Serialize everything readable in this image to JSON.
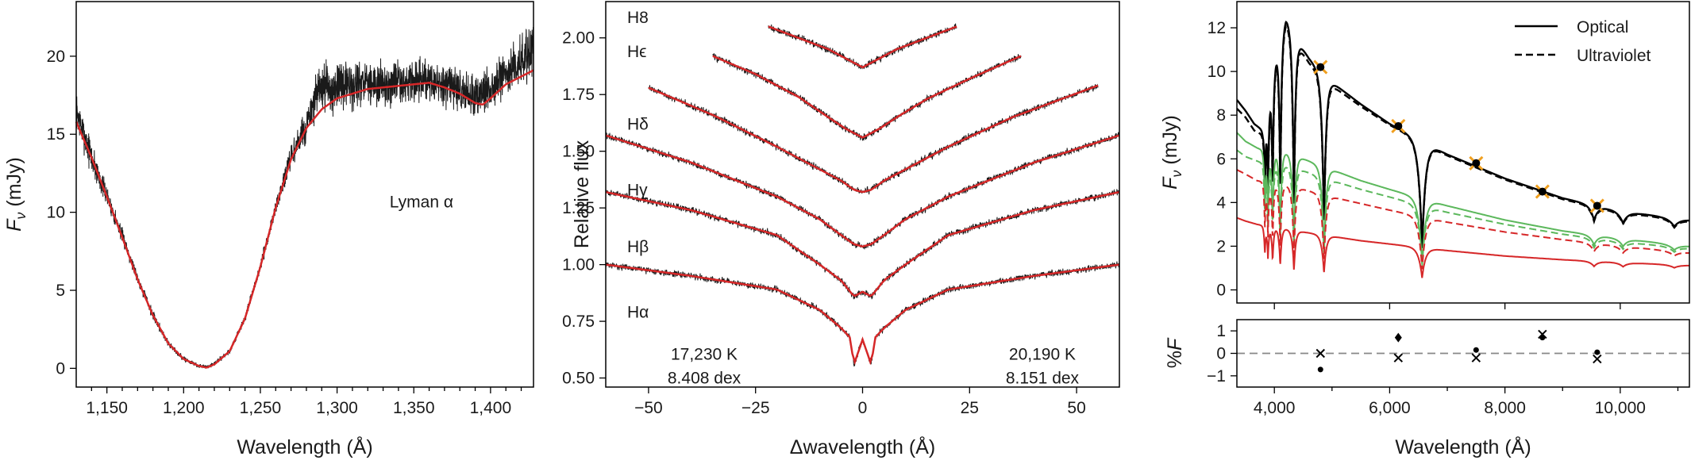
{
  "chart_data": [
    {
      "panel": "left",
      "type": "line",
      "xlabel": "Wavelength (Å)",
      "ylabel": "F_ν (mJy)",
      "xlim": [
        1130,
        1428
      ],
      "ylim": [
        -1.2,
        23.5
      ],
      "xticks": [
        1150,
        1200,
        1250,
        1300,
        1350,
        1400
      ],
      "xtick_labels": [
        "1,150",
        "1,200",
        "1,250",
        "1,300",
        "1,350",
        "1,400"
      ],
      "yticks": [
        0,
        5,
        10,
        15,
        20
      ],
      "ytick_labels": [
        "0",
        "5",
        "10",
        "15",
        "20"
      ],
      "annotations": [
        {
          "text": "Lyman α",
          "x": 1355,
          "y": 10.3
        }
      ],
      "series": [
        {
          "role": "observed",
          "color": "#1a1a1a",
          "x": [
            1130,
            1140,
            1150,
            1160,
            1170,
            1180,
            1190,
            1200,
            1210,
            1215,
            1220,
            1230,
            1240,
            1250,
            1260,
            1270,
            1280,
            1288,
            1300,
            1320,
            1340,
            1360,
            1380,
            1390,
            1400,
            1410,
            1428
          ],
          "y": [
            16.5,
            13.5,
            11,
            8.5,
            5.8,
            3.4,
            1.6,
            0.6,
            0.15,
            0.1,
            0.3,
            1.1,
            3.2,
            6.5,
            10.3,
            13.5,
            15.5,
            17.8,
            18,
            18.2,
            18.3,
            18.4,
            17.8,
            17.5,
            18,
            18.8,
            20.5
          ],
          "noise": [
            0.9,
            0.9,
            0.5,
            0.4,
            0.3,
            0.25,
            0.2,
            0.15,
            0.1,
            0.1,
            0.1,
            0.15,
            0.2,
            0.3,
            0.5,
            0.7,
            0.8,
            1.4,
            1.3,
            1.1,
            1.1,
            1.1,
            1.1,
            1.1,
            1.1,
            1.2,
            1.5
          ]
        },
        {
          "role": "model",
          "color": "#d62728",
          "x": [
            1130,
            1140,
            1150,
            1160,
            1170,
            1180,
            1190,
            1200,
            1210,
            1215,
            1220,
            1230,
            1240,
            1250,
            1260,
            1270,
            1280,
            1290,
            1300,
            1320,
            1340,
            1360,
            1370,
            1380,
            1390,
            1395,
            1400,
            1410,
            1428
          ],
          "y": [
            15.8,
            13.5,
            11,
            8.4,
            5.7,
            3.4,
            1.6,
            0.6,
            0.15,
            0.05,
            0.25,
            1.1,
            3.2,
            6.5,
            10.3,
            13.4,
            15.4,
            16.6,
            17.3,
            17.9,
            18.1,
            18.3,
            18,
            17.6,
            17.0,
            16.9,
            17.3,
            18.2,
            19.1
          ]
        }
      ]
    },
    {
      "panel": "middle",
      "type": "line",
      "xlabel": "Δwavelength (Å)",
      "ylabel": "Relative flux",
      "xlim": [
        -60,
        60
      ],
      "ylim": [
        0.46,
        2.16
      ],
      "xticks": [
        -50,
        -25,
        0,
        25,
        50
      ],
      "xtick_labels": [
        "−50",
        "−25",
        "0",
        "25",
        "50"
      ],
      "yticks": [
        0.5,
        0.75,
        1.0,
        1.25,
        1.5,
        1.75,
        2.0
      ],
      "ytick_labels": [
        "0.50",
        "0.75",
        "1.00",
        "1.25",
        "1.50",
        "1.75",
        "2.00"
      ],
      "annotations": [
        {
          "text": "17,230 K",
          "x": -37,
          "y": 0.605
        },
        {
          "text": "8.408 dex",
          "x": -37,
          "y": 0.5
        },
        {
          "text": "20,190 K",
          "x": 42,
          "y": 0.605
        },
        {
          "text": "8.151 dex",
          "x": 42,
          "y": 0.5
        }
      ],
      "lines": [
        {
          "name": "Hα",
          "label_x": -55,
          "label_y": 0.79,
          "xmin": -60,
          "xmax": 60,
          "x": [
            -60,
            -40,
            -20,
            -10,
            -5,
            -3,
            -2,
            0,
            2,
            3,
            5,
            10,
            20,
            40,
            60
          ],
          "y": [
            1.0,
            0.95,
            0.89,
            0.8,
            0.72,
            0.68,
            0.56,
            0.67,
            0.56,
            0.68,
            0.72,
            0.8,
            0.89,
            0.95,
            1.0
          ]
        },
        {
          "name": "Hβ",
          "label_x": -55,
          "label_y": 1.08,
          "xmin": -60,
          "xmax": 60,
          "x": [
            -60,
            -40,
            -20,
            -10,
            -5,
            -2,
            0,
            2,
            5,
            10,
            20,
            40,
            60
          ],
          "y": [
            1.32,
            1.24,
            1.13,
            1.0,
            0.93,
            0.86,
            0.88,
            0.86,
            0.93,
            1.0,
            1.13,
            1.24,
            1.32
          ]
        },
        {
          "name": "Hγ",
          "label_x": -55,
          "label_y": 1.33,
          "xmin": -60,
          "xmax": 60,
          "x": [
            -60,
            -40,
            -20,
            -10,
            -5,
            -2,
            0,
            2,
            5,
            10,
            20,
            40,
            60
          ],
          "y": [
            1.57,
            1.45,
            1.3,
            1.2,
            1.13,
            1.09,
            1.08,
            1.09,
            1.13,
            1.2,
            1.3,
            1.45,
            1.57
          ]
        },
        {
          "name": "Hδ",
          "label_x": -55,
          "label_y": 1.62,
          "xmin": -50,
          "xmax": 55,
          "x": [
            -50,
            -35,
            -20,
            -10,
            -5,
            -2,
            0,
            2,
            5,
            10,
            20,
            35,
            55
          ],
          "y": [
            1.78,
            1.66,
            1.52,
            1.42,
            1.37,
            1.33,
            1.32,
            1.33,
            1.37,
            1.42,
            1.52,
            1.65,
            1.79
          ]
        },
        {
          "name": "Hϵ",
          "label_x": -55,
          "label_y": 1.94,
          "xmin": -35,
          "xmax": 37,
          "x": [
            -35,
            -25,
            -15,
            -8,
            -4,
            -1,
            0,
            1,
            4,
            8,
            15,
            25,
            37
          ],
          "y": [
            1.92,
            1.84,
            1.74,
            1.65,
            1.6,
            1.57,
            1.56,
            1.57,
            1.6,
            1.65,
            1.73,
            1.82,
            1.92
          ]
        },
        {
          "name": "H8",
          "label_x": -55,
          "label_y": 2.09,
          "xmin": -22,
          "xmax": 22,
          "x": [
            -22,
            -15,
            -8,
            -4,
            -1,
            0,
            1,
            4,
            8,
            15,
            22
          ],
          "y": [
            2.05,
            2.0,
            1.95,
            1.91,
            1.88,
            1.87,
            1.88,
            1.91,
            1.95,
            2.0,
            2.05
          ]
        }
      ]
    },
    {
      "panel": "right-top",
      "type": "line",
      "ylabel": "F_ν (mJy)",
      "xlim": [
        3350,
        11200
      ],
      "ylim": [
        -0.6,
        13.2
      ],
      "yticks": [
        0,
        2,
        4,
        6,
        8,
        10,
        12
      ],
      "ytick_labels": [
        "0",
        "2",
        "4",
        "6",
        "8",
        "10",
        "12"
      ],
      "legend": {
        "placement": "top-right",
        "entries": [
          {
            "label": "Optical",
            "dash": "solid",
            "color": "#000000"
          },
          {
            "label": "Ultraviolet",
            "dash": "dashed",
            "color": "#000000"
          }
        ]
      },
      "absorption_lines": [
        {
          "x": 6563,
          "width": 60,
          "depth": 0.72
        },
        {
          "x": 4861,
          "width": 40,
          "depth": 0.7
        },
        {
          "x": 4340,
          "width": 30,
          "depth": 0.68
        },
        {
          "x": 4102,
          "width": 25,
          "depth": 0.62
        },
        {
          "x": 3970,
          "width": 20,
          "depth": 0.55
        },
        {
          "x": 3889,
          "width": 18,
          "depth": 0.5
        },
        {
          "x": 3835,
          "width": 15,
          "depth": 0.45
        },
        {
          "x": 9546,
          "width": 70,
          "depth": 0.18
        },
        {
          "x": 10049,
          "width": 80,
          "depth": 0.15
        },
        {
          "x": 10938,
          "width": 100,
          "depth": 0.12
        }
      ],
      "series": [
        {
          "component": "total",
          "variant": "optical",
          "color": "#000000",
          "dash": "solid",
          "x": [
            3350,
            3500,
            3650,
            3800,
            3900,
            4000,
            4100,
            4200,
            4300,
            4400,
            4600,
            4800,
            5000,
            5500,
            6000,
            6500,
            7000,
            8000,
            9000,
            10000,
            11200
          ],
          "y": [
            8.7,
            8.2,
            7.6,
            7.3,
            8.7,
            10.5,
            11.8,
            12.5,
            12.1,
            11.4,
            10.6,
            10.0,
            9.5,
            8.5,
            7.6,
            6.9,
            6.2,
            5.1,
            4.2,
            3.6,
            3.2
          ]
        },
        {
          "component": "total",
          "variant": "ultraviolet",
          "color": "#000000",
          "dash": "dashed",
          "x": [
            3350,
            3500,
            3650,
            3800,
            3900,
            4000,
            4100,
            4200,
            4300,
            4400,
            4600,
            4800,
            5000,
            5500,
            6000,
            6500,
            7000,
            8000,
            9000,
            10000,
            11200
          ],
          "y": [
            8.3,
            7.9,
            7.3,
            7.1,
            8.5,
            10.3,
            11.6,
            12.3,
            11.9,
            11.2,
            10.4,
            9.85,
            9.35,
            8.4,
            7.55,
            6.85,
            6.15,
            5.05,
            4.15,
            3.55,
            3.15
          ]
        },
        {
          "component": "cooler",
          "variant": "optical",
          "color": "#5cb85c",
          "dash": "solid",
          "x": [
            3350,
            3500,
            3700,
            3900,
            4100,
            4300,
            4500,
            5000,
            5500,
            6000,
            7000,
            8000,
            9000,
            10000,
            11200
          ],
          "y": [
            7.2,
            6.8,
            6.5,
            6.3,
            6.4,
            6.2,
            6.0,
            5.5,
            5.0,
            4.6,
            3.85,
            3.2,
            2.7,
            2.35,
            2.0
          ]
        },
        {
          "component": "cooler",
          "variant": "ultraviolet",
          "color": "#5cb85c",
          "dash": "dashed",
          "x": [
            3350,
            3500,
            3700,
            3900,
            4100,
            4300,
            4500,
            5000,
            5500,
            6000,
            7000,
            8000,
            9000,
            10000,
            11200
          ],
          "y": [
            6.4,
            6.1,
            5.9,
            5.7,
            5.8,
            5.6,
            5.45,
            5.0,
            4.6,
            4.25,
            3.55,
            3.0,
            2.55,
            2.2,
            1.9
          ]
        },
        {
          "component": "hotter",
          "variant": "ultraviolet",
          "color": "#d62728",
          "dash": "dashed",
          "x": [
            3350,
            3500,
            3700,
            3900,
            4100,
            4300,
            4500,
            5000,
            5500,
            6000,
            7000,
            8000,
            9000,
            10000,
            11200
          ],
          "y": [
            5.5,
            5.3,
            5.0,
            4.9,
            4.85,
            4.75,
            4.6,
            4.25,
            3.95,
            3.65,
            3.1,
            2.65,
            2.3,
            2.0,
            1.7
          ]
        },
        {
          "component": "hotter",
          "variant": "optical",
          "color": "#d62728",
          "dash": "solid",
          "x": [
            3350,
            3500,
            3700,
            3900,
            4100,
            4300,
            4500,
            5000,
            5500,
            6000,
            7000,
            8000,
            9000,
            10000,
            11200
          ],
          "y": [
            3.3,
            3.15,
            3.0,
            2.9,
            2.85,
            2.75,
            2.65,
            2.45,
            2.25,
            2.1,
            1.8,
            1.55,
            1.38,
            1.25,
            1.12
          ]
        }
      ],
      "photometry": [
        {
          "x": 4800,
          "y": 10.2
        },
        {
          "x": 6150,
          "y": 7.5
        },
        {
          "x": 7500,
          "y": 5.8
        },
        {
          "x": 8650,
          "y": 4.5
        },
        {
          "x": 9600,
          "y": 3.85
        }
      ]
    },
    {
      "panel": "right-bottom",
      "type": "scatter",
      "xlabel": "Wavelength (Å)",
      "ylabel": "%F",
      "xlim": [
        3350,
        11200
      ],
      "ylim": [
        -1.5,
        1.5
      ],
      "xticks": [
        4000,
        6000,
        8000,
        10000
      ],
      "xtick_labels": [
        "4,000",
        "6,000",
        "8,000",
        "10,000"
      ],
      "yticks": [
        -1,
        0,
        1
      ],
      "ytick_labels": [
        "−1",
        "0",
        "1"
      ],
      "reference_line": 0,
      "points": [
        {
          "x": 4800,
          "y": 0.0,
          "marker": "x"
        },
        {
          "x": 4800,
          "y": -0.72,
          "marker": "dot"
        },
        {
          "x": 6150,
          "y": 0.7,
          "marker": "diamond"
        },
        {
          "x": 6150,
          "y": -0.2,
          "marker": "x"
        },
        {
          "x": 7500,
          "y": 0.15,
          "marker": "dot"
        },
        {
          "x": 7500,
          "y": -0.2,
          "marker": "x"
        },
        {
          "x": 8650,
          "y": 0.85,
          "marker": "x"
        },
        {
          "x": 8650,
          "y": 0.7,
          "marker": "dot"
        },
        {
          "x": 9600,
          "y": 0.05,
          "marker": "dot"
        },
        {
          "x": 9600,
          "y": -0.25,
          "marker": "x"
        }
      ]
    }
  ]
}
